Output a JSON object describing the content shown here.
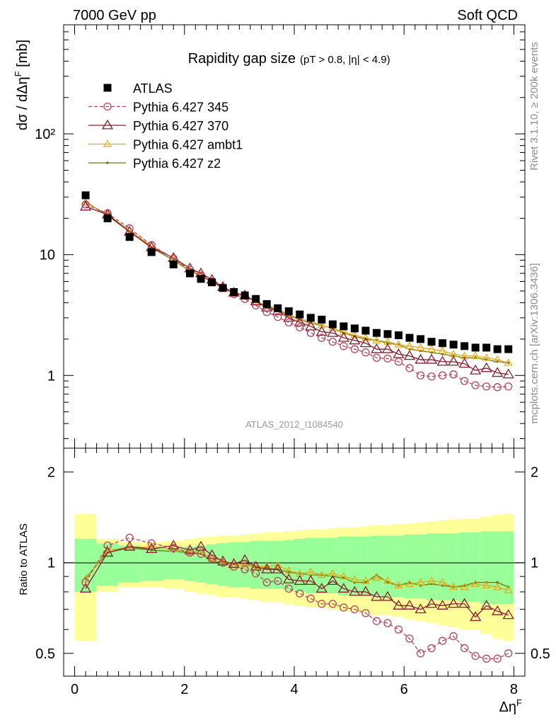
{
  "header": {
    "left": "7000 GeV pp",
    "right": "Soft QCD"
  },
  "side_labels": {
    "rivet": "Rivet 3.1.10, ≥ 200k events",
    "mcplots": "mcplots.cern.ch [arXiv:1306.3436]"
  },
  "chart_data": [
    {
      "type": "scatter",
      "panel": "main",
      "title": "Rapidity gap size",
      "subtitle": "(pT > 0.8, |η| < 4.9)",
      "ylabel": "dσ / dΔη^F [mb]",
      "xlabel": "Δη^F",
      "y_scale": "log",
      "xlim": [
        -0.2,
        8.2
      ],
      "ylim": [
        0.25,
        800
      ],
      "x_ticks": [
        "0",
        "2",
        "4",
        "6",
        "8"
      ],
      "y_tick_labels": [
        "1",
        "10",
        "10²"
      ],
      "watermark": "ATLAS_2012_I1084540",
      "legend_position": "top-left",
      "x": [
        0.2,
        0.6,
        1.0,
        1.4,
        1.8,
        2.1,
        2.3,
        2.5,
        2.7,
        2.9,
        3.1,
        3.3,
        3.5,
        3.7,
        3.9,
        4.1,
        4.3,
        4.5,
        4.7,
        4.9,
        5.1,
        5.3,
        5.5,
        5.7,
        5.9,
        6.1,
        6.3,
        6.5,
        6.7,
        6.9,
        7.1,
        7.3,
        7.5,
        7.7,
        7.9
      ],
      "series": [
        {
          "name": "ATLAS",
          "style": "square",
          "color": "#000000",
          "values": [
            31.0,
            20.0,
            14.0,
            10.5,
            8.3,
            7.0,
            6.3,
            5.9,
            5.3,
            4.9,
            4.6,
            4.3,
            3.9,
            3.6,
            3.4,
            3.2,
            3.0,
            2.9,
            2.65,
            2.55,
            2.45,
            2.35,
            2.25,
            2.2,
            2.15,
            2.05,
            2.0,
            1.9,
            1.85,
            1.8,
            1.75,
            1.7,
            1.7,
            1.65,
            1.65
          ]
        },
        {
          "name": "Pythia 6.427 345",
          "style": "circle-dashed",
          "color": "#b8435a",
          "values": [
            26.0,
            22.0,
            16.5,
            12.0,
            9.3,
            7.5,
            6.7,
            6.0,
            5.3,
            4.7,
            4.3,
            3.8,
            3.35,
            3.05,
            2.75,
            2.5,
            2.25,
            2.05,
            1.9,
            1.75,
            1.65,
            1.55,
            1.4,
            1.38,
            1.3,
            1.15,
            1.0,
            0.98,
            1.0,
            1.02,
            0.9,
            0.83,
            0.81,
            0.8,
            0.81
          ]
        },
        {
          "name": "Pythia 6.427 370",
          "style": "triangle",
          "color": "#8b1a2e",
          "values": [
            25.0,
            21.5,
            15.5,
            11.5,
            9.4,
            7.7,
            7.0,
            6.2,
            5.4,
            4.85,
            4.6,
            4.1,
            3.65,
            3.4,
            3.0,
            2.75,
            2.55,
            2.3,
            2.25,
            2.05,
            1.95,
            1.85,
            1.65,
            1.65,
            1.5,
            1.45,
            1.35,
            1.35,
            1.3,
            1.3,
            1.25,
            1.1,
            1.15,
            1.05,
            1.02
          ]
        },
        {
          "name": "Pythia 6.427 ambt1",
          "style": "triangle-small",
          "color": "#e6a817",
          "values": [
            27.0,
            21.5,
            15.8,
            11.8,
            9.3,
            7.3,
            6.8,
            6.0,
            5.4,
            4.8,
            4.5,
            4.1,
            3.8,
            3.55,
            3.2,
            2.95,
            2.8,
            2.6,
            2.45,
            2.3,
            2.15,
            2.05,
            1.95,
            1.9,
            1.8,
            1.75,
            1.7,
            1.65,
            1.6,
            1.5,
            1.45,
            1.45,
            1.4,
            1.35,
            1.27
          ]
        },
        {
          "name": "Pythia 6.427 z2",
          "style": "dot",
          "color": "#6b7a10",
          "values": [
            27.5,
            21.0,
            15.5,
            11.4,
            9.0,
            7.3,
            6.7,
            5.9,
            5.3,
            4.8,
            4.5,
            4.1,
            3.75,
            3.45,
            3.15,
            2.9,
            2.7,
            2.6,
            2.45,
            2.25,
            2.1,
            2.0,
            1.95,
            1.85,
            1.8,
            1.65,
            1.6,
            1.55,
            1.5,
            1.45,
            1.4,
            1.4,
            1.35,
            1.3,
            1.27
          ]
        }
      ]
    },
    {
      "type": "scatter",
      "panel": "ratio",
      "ylabel": "Ratio to ATLAS",
      "xlabel": "Δη^F",
      "y_scale": "log",
      "ylim": [
        0.42,
        2.4
      ],
      "y_tick_labels": [
        "0.5",
        "1",
        "2"
      ],
      "x_ticks": [
        "0",
        "2",
        "4",
        "6",
        "8"
      ],
      "band_edges": [
        0.0,
        0.4,
        0.8,
        1.2,
        1.6,
        2.0,
        2.2,
        2.4,
        2.6,
        2.8,
        3.0,
        3.2,
        3.4,
        3.6,
        3.8,
        4.0,
        4.2,
        4.4,
        4.6,
        4.8,
        5.0,
        5.2,
        5.4,
        5.6,
        5.8,
        6.0,
        6.2,
        6.4,
        6.6,
        6.8,
        7.0,
        7.2,
        7.4,
        7.6,
        7.8,
        8.0
      ],
      "band_inner": [
        0.2,
        0.16,
        0.14,
        0.13,
        0.12,
        0.13,
        0.14,
        0.15,
        0.16,
        0.17,
        0.17,
        0.18,
        0.18,
        0.18,
        0.19,
        0.2,
        0.21,
        0.21,
        0.21,
        0.22,
        0.22,
        0.22,
        0.23,
        0.23,
        0.23,
        0.24,
        0.24,
        0.25,
        0.25,
        0.25,
        0.26,
        0.26,
        0.27,
        0.27,
        0.27
      ],
      "band_outer": [
        0.45,
        0.2,
        0.17,
        0.17,
        0.18,
        0.2,
        0.21,
        0.22,
        0.23,
        0.23,
        0.24,
        0.25,
        0.26,
        0.26,
        0.27,
        0.28,
        0.29,
        0.29,
        0.3,
        0.31,
        0.31,
        0.32,
        0.33,
        0.33,
        0.34,
        0.35,
        0.36,
        0.37,
        0.38,
        0.39,
        0.4,
        0.4,
        0.42,
        0.44,
        0.45
      ],
      "band_colors": {
        "inner": "#99ff99",
        "outer": "#ffff99"
      },
      "series": [
        {
          "name": "Pythia 6.427 345",
          "values": [
            0.86,
            1.14,
            1.21,
            1.16,
            1.12,
            1.08,
            1.07,
            1.03,
            1.0,
            0.97,
            0.95,
            0.92,
            0.86,
            0.87,
            0.82,
            0.79,
            0.76,
            0.73,
            0.73,
            0.71,
            0.7,
            0.68,
            0.64,
            0.63,
            0.6,
            0.56,
            0.5,
            0.52,
            0.55,
            0.57,
            0.52,
            0.49,
            0.48,
            0.48,
            0.5
          ]
        },
        {
          "name": "Pythia 6.427 370",
          "values": [
            0.82,
            1.08,
            1.13,
            1.11,
            1.14,
            1.1,
            1.13,
            1.06,
            1.01,
            0.99,
            1.02,
            0.97,
            0.95,
            0.95,
            0.88,
            0.87,
            0.87,
            0.82,
            0.87,
            0.82,
            0.8,
            0.8,
            0.77,
            0.77,
            0.72,
            0.72,
            0.7,
            0.73,
            0.72,
            0.73,
            0.73,
            0.66,
            0.72,
            0.69,
            0.67
          ]
        },
        {
          "name": "Pythia 6.427 ambt1",
          "values": [
            0.88,
            1.1,
            1.12,
            1.13,
            1.11,
            1.08,
            1.09,
            1.03,
            1.02,
            0.98,
            0.98,
            0.97,
            0.97,
            0.98,
            0.94,
            0.92,
            0.93,
            0.91,
            0.92,
            0.9,
            0.88,
            0.87,
            0.89,
            0.87,
            0.84,
            0.85,
            0.86,
            0.87,
            0.86,
            0.83,
            0.83,
            0.85,
            0.84,
            0.83,
            0.81
          ]
        },
        {
          "name": "Pythia 6.427 z2",
          "values": [
            0.89,
            1.08,
            1.12,
            1.1,
            1.09,
            1.08,
            1.07,
            1.01,
            1.0,
            0.99,
            1.0,
            0.96,
            0.96,
            0.95,
            0.93,
            0.92,
            0.91,
            0.91,
            0.9,
            0.89,
            0.86,
            0.86,
            0.91,
            0.86,
            0.84,
            0.86,
            0.84,
            0.85,
            0.84,
            0.83,
            0.84,
            0.86,
            0.86,
            0.86,
            0.83
          ]
        }
      ]
    }
  ]
}
